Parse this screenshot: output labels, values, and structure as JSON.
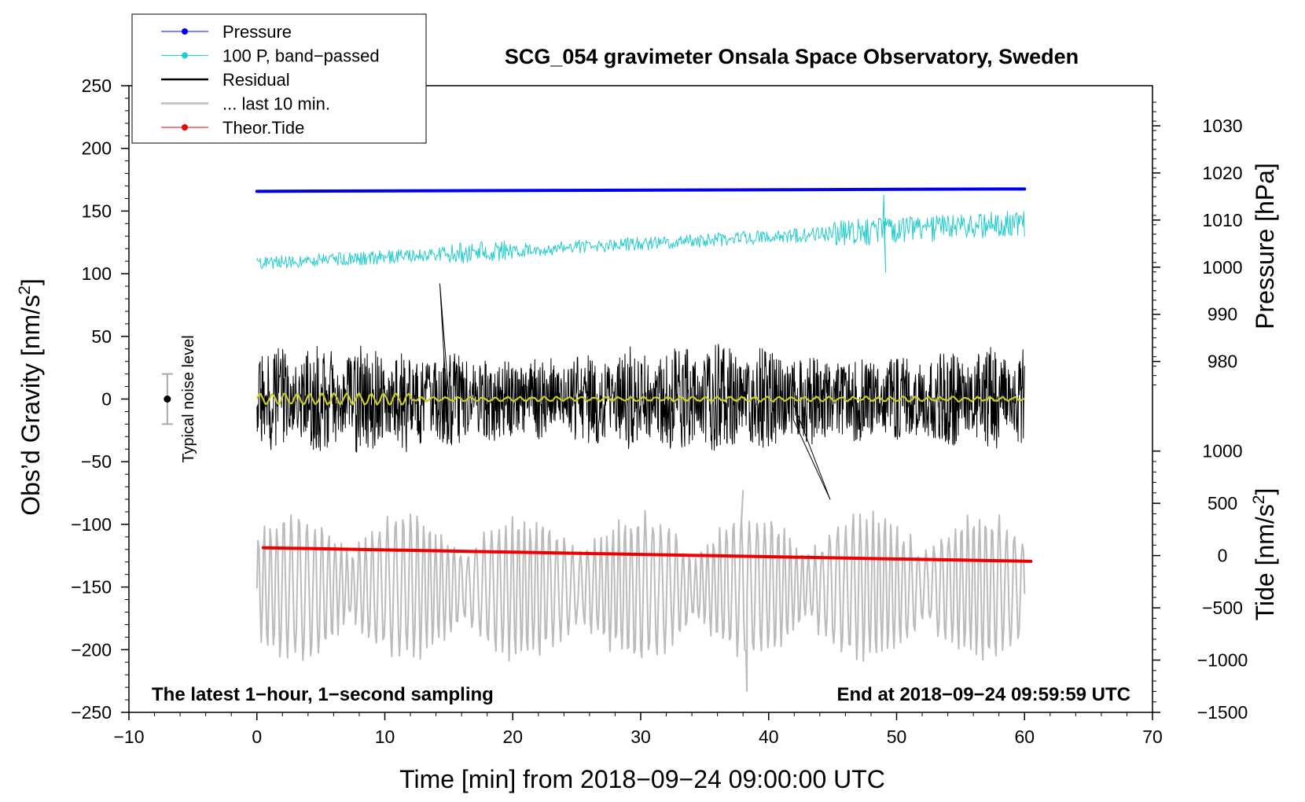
{
  "chart_data": {
    "type": "line",
    "title": "SCG_054 gravimeter Onsala Space Observatory, Sweden",
    "xlabel": "Time [min] from 2018−09−24 09:00:00 UTC",
    "ylabel_prefix": "Obs’d Gravity [nm/s",
    "ylabel_sup": "2",
    "ylabel_suffix": "]",
    "xlim": [
      -10,
      70
    ],
    "ylim": [
      -250,
      250
    ],
    "x_ticks": [
      -10,
      0,
      10,
      20,
      30,
      40,
      50,
      60,
      70
    ],
    "x_tick_labels": [
      "−10",
      "0",
      "10",
      "20",
      "30",
      "40",
      "50",
      "60",
      "70"
    ],
    "y_ticks": [
      -250,
      -200,
      -150,
      -100,
      -50,
      0,
      50,
      100,
      150,
      200,
      250
    ],
    "y_tick_labels": [
      "−250",
      "−200",
      "−150",
      "−100",
      "−50",
      "0",
      "50",
      "100",
      "150",
      "200",
      "250"
    ],
    "right_axes": {
      "pressure": {
        "label": "Pressure [hPa]",
        "ticks": [
          980,
          990,
          1000,
          1010,
          1020,
          1030
        ],
        "tick_labels": [
          "980",
          "990",
          "1000",
          "1010",
          "1020",
          "1030"
        ],
        "map_ref": [
          [
            980,
            30
          ],
          [
            1030,
            218
          ]
        ]
      },
      "tide": {
        "label_prefix": "Tide [nm/s",
        "label_sup": "2",
        "label_suffix": "]",
        "ticks": [
          -1500,
          -1000,
          -500,
          0,
          500,
          1000
        ],
        "tick_labels": [
          "−1500",
          "−1000",
          "−500",
          "0",
          "500",
          "1000"
        ],
        "map_ref": [
          [
            -1500,
            -250
          ],
          [
            1000,
            -41.5
          ]
        ]
      }
    },
    "legend": [
      {
        "label": "Pressure",
        "color": "#0000ee",
        "marker": true,
        "width": 1
      },
      {
        "label": "100 P, band−passed",
        "color": "#22cccc",
        "marker": true,
        "width": 1
      },
      {
        "label": "Residual",
        "color": "#000000",
        "marker": false,
        "width": 2.5
      },
      {
        "label": "... last 10 min.",
        "color": "#bbbbbb",
        "marker": false,
        "width": 2.5
      },
      {
        "label": "Theor.Tide",
        "color": "#ee0000",
        "marker": true,
        "width": 1
      }
    ],
    "series": [
      {
        "name": "Pressure",
        "color": "#0000ee",
        "axis": "pressure",
        "x_range": [
          0,
          60
        ],
        "start": 1016.1,
        "end": 1016.6
      },
      {
        "name": "100 P, band−passed",
        "color": "#22cccc",
        "axis": "left",
        "x_range": [
          0,
          60
        ],
        "baseline_start": 108,
        "baseline_end": 140,
        "amplitude": 7,
        "spike": {
          "x": 49,
          "high": 163,
          "low": 101
        }
      },
      {
        "name": "Residual",
        "color": "#000000",
        "axis": "left",
        "x_range": [
          0,
          60
        ],
        "mean": 0,
        "amplitude": 40,
        "extremes": [
          92,
          -80
        ]
      },
      {
        "name": "Residual smoothed",
        "color": "#cccc22",
        "axis": "left",
        "x_range": [
          0,
          60
        ],
        "mean": 0,
        "amplitude": 3
      },
      {
        "name": "... last 10 min.",
        "color": "#bbbbbb",
        "axis": "left",
        "x_range": [
          0,
          60
        ],
        "center": -150,
        "amplitude": 40,
        "extremes": [
          -73,
          -233
        ]
      },
      {
        "name": "Theor.Tide",
        "color": "#ee0000",
        "axis": "tide",
        "x_range": [
          0.5,
          60.5
        ],
        "start": 75,
        "end": -55
      }
    ],
    "noise_bar": {
      "label": "Typical noise level",
      "x": -7,
      "y": 0,
      "error": 20
    },
    "annotations": {
      "left": "The latest 1−hour, 1−second sampling",
      "right": "End at 2018−09−24 09:59:59 UTC"
    }
  }
}
